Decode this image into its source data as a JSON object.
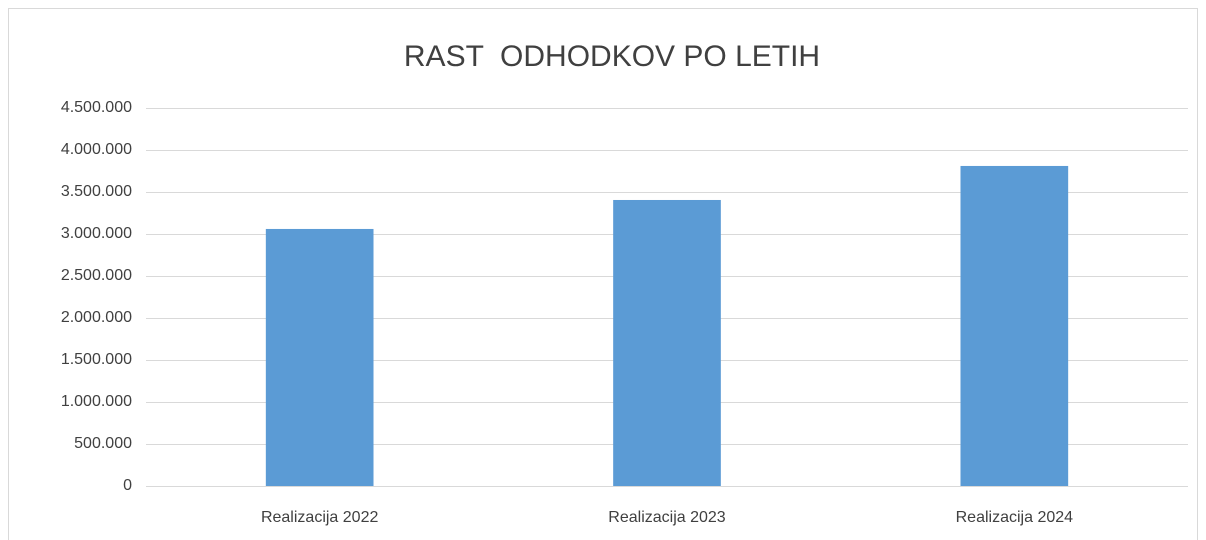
{
  "chart_data": {
    "type": "bar",
    "title": "RAST  ODHODKOV PO LETIH",
    "categories": [
      "Realizacija 2022",
      "Realizacija 2023",
      "Realizacija 2024"
    ],
    "values": [
      3060000,
      3405000,
      3810000
    ],
    "color": "#5b9bd5",
    "ylim": [
      0,
      4500000
    ],
    "yticks": [
      0,
      {
        "value": 500000,
        "label": "500.000"
      },
      {
        "value": 1000000,
        "label": "1.000.000"
      },
      {
        "value": 1500000,
        "label": "1.500.000"
      },
      {
        "value": 2000000,
        "label": "2.000.000"
      },
      {
        "value": 2500000,
        "label": "2.500.000"
      },
      {
        "value": 3000000,
        "label": "3.000.000"
      },
      {
        "value": 3500000,
        "label": "3.500.000"
      },
      {
        "value": 4000000,
        "label": "4.000.000"
      },
      {
        "value": 4500000,
        "label": "4.500.000"
      }
    ],
    "grid": true
  }
}
